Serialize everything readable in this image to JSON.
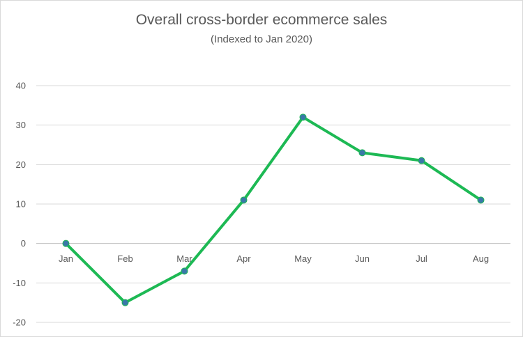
{
  "chart_data": {
    "type": "line",
    "title": "Overall cross-border ecommerce sales",
    "subtitle": "(Indexed to Jan 2020)",
    "categories": [
      "Jan",
      "Feb",
      "Mar",
      "Apr",
      "May",
      "Jun",
      "Jul",
      "Aug"
    ],
    "series": [
      {
        "values": [
          0,
          -15,
          -7,
          11,
          32,
          23,
          21,
          11
        ]
      }
    ],
    "yticks": [
      40,
      30,
      20,
      10,
      0,
      -10,
      -20
    ],
    "ylim": [
      -20,
      40
    ],
    "grid": true,
    "legend": "none",
    "colors": {
      "line": "#1db954",
      "marker": "#3a78a8",
      "grid": "#d9d9d9"
    }
  }
}
